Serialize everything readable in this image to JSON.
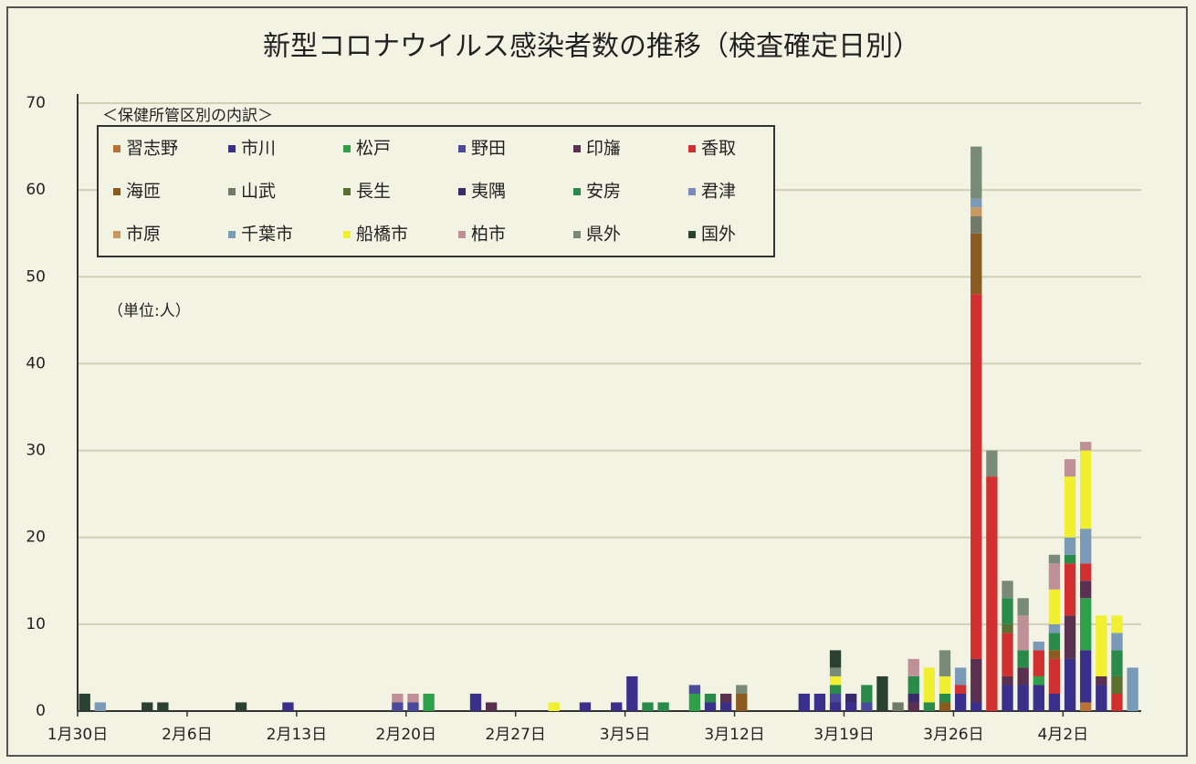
{
  "chart_data": {
    "type": "stacked_bar",
    "title": "新型コロナウイルス感染者数の推移（検査確定日別）",
    "legend_title": "＜保健所管区別の内訳＞",
    "annotation": "（単位:人）",
    "categories": [
      "1月30日",
      null,
      null,
      null,
      null,
      null,
      null,
      "2月6日",
      null,
      null,
      null,
      null,
      null,
      null,
      "2月13日",
      null,
      null,
      null,
      null,
      null,
      null,
      "2月20日",
      null,
      null,
      null,
      null,
      null,
      null,
      "2月27日",
      null,
      null,
      null,
      null,
      null,
      null,
      "3月5日",
      null,
      null,
      null,
      null,
      null,
      null,
      "3月12日",
      null,
      null,
      null,
      null,
      null,
      null,
      "3月19日",
      null,
      null,
      null,
      null,
      null,
      null,
      "3月26日",
      null,
      null,
      null,
      null,
      null,
      null,
      "4月2日",
      null,
      null,
      null,
      null
    ],
    "ylim": [
      0,
      70
    ],
    "yticks": [
      0,
      10,
      20,
      30,
      40,
      50,
      60,
      70
    ],
    "grid": true,
    "series": [
      {
        "name": "習志野",
        "color": "#b8733a",
        "values": [
          0,
          0,
          0,
          0,
          0,
          0,
          0,
          0,
          0,
          0,
          0,
          0,
          0,
          0,
          0,
          0,
          0,
          0,
          0,
          0,
          0,
          0,
          0,
          0,
          0,
          0,
          0,
          0,
          0,
          0,
          0,
          0,
          0,
          0,
          0,
          0,
          0,
          0,
          0,
          0,
          0,
          0,
          0,
          0,
          0,
          0,
          0,
          0,
          0,
          0,
          0,
          0,
          0,
          0,
          0,
          0,
          0,
          0,
          0,
          0,
          0,
          0,
          0,
          0,
          1,
          0,
          0,
          0
        ]
      },
      {
        "name": "市川",
        "color": "#3a2f8a",
        "values": [
          0,
          0,
          0,
          0,
          0,
          0,
          0,
          0,
          0,
          0,
          0,
          0,
          0,
          1,
          0,
          0,
          0,
          0,
          0,
          0,
          0,
          0,
          0,
          0,
          0,
          2,
          0,
          0,
          0,
          0,
          0,
          0,
          1,
          0,
          1,
          4,
          0,
          0,
          0,
          0,
          1,
          1,
          0,
          0,
          0,
          0,
          2,
          2,
          1,
          1,
          0,
          0,
          0,
          0,
          0,
          0,
          2,
          1,
          0,
          3,
          3,
          3,
          2,
          6,
          6,
          3,
          0,
          0
        ]
      },
      {
        "name": "松戸",
        "color": "#2ea04a",
        "values": [
          0,
          0,
          0,
          0,
          0,
          0,
          0,
          0,
          0,
          0,
          0,
          0,
          0,
          0,
          0,
          0,
          0,
          0,
          0,
          0,
          0,
          0,
          2,
          0,
          0,
          0,
          0,
          0,
          0,
          0,
          0,
          0,
          0,
          0,
          0,
          0,
          0,
          0,
          0,
          2,
          0,
          0,
          0,
          0,
          0,
          0,
          0,
          0,
          0,
          0,
          0,
          0,
          0,
          0,
          0,
          0,
          0,
          0,
          0,
          0,
          0,
          1,
          0,
          0,
          6,
          0,
          0,
          0
        ]
      },
      {
        "name": "野田",
        "color": "#4a4a9a",
        "values": [
          0,
          0,
          0,
          0,
          0,
          0,
          0,
          0,
          0,
          0,
          0,
          0,
          0,
          0,
          0,
          0,
          0,
          0,
          0,
          0,
          1,
          1,
          0,
          0,
          0,
          0,
          0,
          0,
          0,
          0,
          0,
          0,
          0,
          0,
          0,
          0,
          0,
          0,
          0,
          1,
          0,
          0,
          0,
          0,
          0,
          0,
          0,
          0,
          1,
          0,
          1,
          0,
          0,
          0,
          0,
          0,
          0,
          0,
          0,
          0,
          0,
          0,
          0,
          0,
          0,
          0,
          0,
          0
        ]
      },
      {
        "name": "印旛",
        "color": "#5a3050",
        "values": [
          0,
          0,
          0,
          0,
          0,
          0,
          0,
          0,
          0,
          0,
          0,
          0,
          0,
          0,
          0,
          0,
          0,
          0,
          0,
          0,
          0,
          0,
          0,
          0,
          0,
          0,
          1,
          0,
          0,
          0,
          0,
          0,
          0,
          0,
          0,
          0,
          0,
          0,
          0,
          0,
          0,
          1,
          0,
          0,
          0,
          0,
          0,
          0,
          0,
          0,
          0,
          0,
          0,
          1,
          0,
          0,
          0,
          5,
          0,
          1,
          2,
          0,
          0,
          5,
          2,
          1,
          0,
          0
        ]
      },
      {
        "name": "香取",
        "color": "#d03030",
        "values": [
          0,
          0,
          0,
          0,
          0,
          0,
          0,
          0,
          0,
          0,
          0,
          0,
          0,
          0,
          0,
          0,
          0,
          0,
          0,
          0,
          0,
          0,
          0,
          0,
          0,
          0,
          0,
          0,
          0,
          0,
          0,
          0,
          0,
          0,
          0,
          0,
          0,
          0,
          0,
          0,
          0,
          0,
          0,
          0,
          0,
          0,
          0,
          0,
          0,
          0,
          0,
          0,
          0,
          0,
          0,
          0,
          1,
          42,
          27,
          5,
          0,
          3,
          4,
          6,
          2,
          0,
          2,
          0
        ]
      },
      {
        "name": "海匝",
        "color": "#8a5a20",
        "values": [
          0,
          0,
          0,
          0,
          0,
          0,
          0,
          0,
          0,
          0,
          0,
          0,
          0,
          0,
          0,
          0,
          0,
          0,
          0,
          0,
          0,
          0,
          0,
          0,
          0,
          0,
          0,
          0,
          0,
          0,
          0,
          0,
          0,
          0,
          0,
          0,
          0,
          0,
          0,
          0,
          0,
          0,
          2,
          0,
          0,
          0,
          0,
          0,
          0,
          0,
          0,
          0,
          0,
          0,
          0,
          1,
          0,
          7,
          0,
          0,
          0,
          0,
          1,
          0,
          0,
          0,
          0,
          0
        ]
      },
      {
        "name": "山武",
        "color": "#707a68",
        "values": [
          0,
          0,
          0,
          0,
          0,
          0,
          0,
          0,
          0,
          0,
          0,
          0,
          0,
          0,
          0,
          0,
          0,
          0,
          0,
          0,
          0,
          0,
          0,
          0,
          0,
          0,
          0,
          0,
          0,
          0,
          0,
          0,
          0,
          0,
          0,
          0,
          0,
          0,
          0,
          0,
          0,
          0,
          0,
          0,
          0,
          0,
          0,
          0,
          0,
          0,
          0,
          0,
          1,
          0,
          0,
          0,
          0,
          2,
          0,
          0,
          0,
          0,
          0,
          0,
          0,
          0,
          0,
          0
        ]
      },
      {
        "name": "長生",
        "color": "#5a7030",
        "values": [
          0,
          0,
          0,
          0,
          0,
          0,
          0,
          0,
          0,
          0,
          0,
          0,
          0,
          0,
          0,
          0,
          0,
          0,
          0,
          0,
          0,
          0,
          0,
          0,
          0,
          0,
          0,
          0,
          0,
          0,
          0,
          0,
          0,
          0,
          0,
          0,
          0,
          0,
          0,
          0,
          0,
          0,
          0,
          0,
          0,
          0,
          0,
          0,
          0,
          0,
          0,
          0,
          0,
          0,
          0,
          0,
          0,
          0,
          0,
          1,
          0,
          0,
          0,
          0,
          0,
          0,
          2,
          0
        ]
      },
      {
        "name": "夷隅",
        "color": "#3a2a6a",
        "values": [
          0,
          0,
          0,
          0,
          0,
          0,
          0,
          0,
          0,
          0,
          0,
          0,
          0,
          0,
          0,
          0,
          0,
          0,
          0,
          0,
          0,
          0,
          0,
          0,
          0,
          0,
          0,
          0,
          0,
          0,
          0,
          0,
          0,
          0,
          0,
          0,
          0,
          0,
          0,
          0,
          0,
          0,
          0,
          0,
          0,
          0,
          0,
          0,
          0,
          1,
          0,
          0,
          0,
          1,
          0,
          0,
          0,
          0,
          0,
          0,
          0,
          0,
          0,
          0,
          0,
          0,
          0,
          0
        ]
      },
      {
        "name": "安房",
        "color": "#2a8a4a",
        "values": [
          0,
          0,
          0,
          0,
          0,
          0,
          0,
          0,
          0,
          0,
          0,
          0,
          0,
          0,
          0,
          0,
          0,
          0,
          0,
          0,
          0,
          0,
          0,
          0,
          0,
          0,
          0,
          0,
          0,
          0,
          0,
          0,
          0,
          0,
          0,
          0,
          1,
          1,
          0,
          0,
          1,
          0,
          0,
          0,
          0,
          0,
          0,
          0,
          1,
          0,
          2,
          0,
          0,
          2,
          1,
          1,
          0,
          0,
          0,
          3,
          2,
          0,
          2,
          1,
          0,
          0,
          3,
          0
        ]
      },
      {
        "name": "君津",
        "color": "#7a8ab8",
        "values": [
          0,
          0,
          0,
          0,
          0,
          0,
          0,
          0,
          0,
          0,
          0,
          0,
          0,
          0,
          0,
          0,
          0,
          0,
          0,
          0,
          0,
          0,
          0,
          0,
          0,
          0,
          0,
          0,
          0,
          0,
          0,
          0,
          0,
          0,
          0,
          0,
          0,
          0,
          0,
          0,
          0,
          0,
          0,
          0,
          0,
          0,
          0,
          0,
          0,
          0,
          0,
          0,
          0,
          0,
          0,
          0,
          0,
          0,
          0,
          0,
          0,
          0,
          0,
          0,
          0,
          0,
          0,
          0
        ]
      },
      {
        "name": "市原",
        "color": "#c89860",
        "values": [
          0,
          0,
          0,
          0,
          0,
          0,
          0,
          0,
          0,
          0,
          0,
          0,
          0,
          0,
          0,
          0,
          0,
          0,
          0,
          0,
          0,
          0,
          0,
          0,
          0,
          0,
          0,
          0,
          0,
          0,
          0,
          0,
          0,
          0,
          0,
          0,
          0,
          0,
          0,
          0,
          0,
          0,
          0,
          0,
          0,
          0,
          0,
          0,
          0,
          0,
          0,
          0,
          0,
          0,
          0,
          0,
          0,
          1,
          0,
          0,
          0,
          0,
          0,
          0,
          0,
          0,
          0,
          0
        ]
      },
      {
        "name": "千葉市",
        "color": "#7a9ab8",
        "values": [
          0,
          1,
          0,
          0,
          0,
          0,
          0,
          0,
          0,
          0,
          0,
          0,
          0,
          0,
          0,
          0,
          0,
          0,
          0,
          0,
          0,
          0,
          0,
          0,
          0,
          0,
          0,
          0,
          0,
          0,
          0,
          0,
          0,
          0,
          0,
          0,
          0,
          0,
          0,
          0,
          0,
          0,
          0,
          0,
          0,
          0,
          0,
          0,
          0,
          0,
          0,
          0,
          0,
          0,
          0,
          0,
          2,
          1,
          0,
          0,
          0,
          1,
          1,
          2,
          4,
          0,
          2,
          5
        ]
      },
      {
        "name": "船橋市",
        "color": "#f0f030",
        "values": [
          0,
          0,
          0,
          0,
          0,
          0,
          0,
          0,
          0,
          0,
          0,
          0,
          0,
          0,
          0,
          0,
          0,
          0,
          0,
          0,
          0,
          0,
          0,
          0,
          0,
          0,
          0,
          0,
          0,
          0,
          1,
          0,
          0,
          0,
          0,
          0,
          0,
          0,
          0,
          0,
          0,
          0,
          0,
          0,
          0,
          0,
          0,
          0,
          1,
          0,
          0,
          0,
          0,
          0,
          4,
          2,
          0,
          0,
          0,
          0,
          0,
          0,
          4,
          7,
          9,
          7,
          2,
          0
        ]
      },
      {
        "name": "柏市",
        "color": "#c09098",
        "values": [
          0,
          0,
          0,
          0,
          0,
          0,
          0,
          0,
          0,
          0,
          0,
          0,
          0,
          0,
          0,
          0,
          0,
          0,
          0,
          0,
          1,
          1,
          0,
          0,
          0,
          0,
          0,
          0,
          0,
          0,
          0,
          0,
          0,
          0,
          0,
          0,
          0,
          0,
          0,
          0,
          0,
          0,
          0,
          0,
          0,
          0,
          0,
          0,
          0,
          0,
          0,
          0,
          0,
          2,
          0,
          0,
          0,
          0,
          0,
          0,
          4,
          0,
          3,
          2,
          1,
          0,
          0,
          0
        ]
      },
      {
        "name": "県外",
        "color": "#7a8a78",
        "values": [
          0,
          0,
          0,
          0,
          0,
          0,
          0,
          0,
          0,
          0,
          0,
          0,
          0,
          0,
          0,
          0,
          0,
          0,
          0,
          0,
          0,
          0,
          0,
          0,
          0,
          0,
          0,
          0,
          0,
          0,
          0,
          0,
          0,
          0,
          0,
          0,
          0,
          0,
          0,
          0,
          0,
          0,
          1,
          0,
          0,
          0,
          0,
          0,
          1,
          0,
          0,
          0,
          0,
          0,
          0,
          3,
          0,
          6,
          3,
          2,
          2,
          0,
          1,
          0,
          0,
          0,
          0,
          0
        ]
      },
      {
        "name": "国外",
        "color": "#2a4030",
        "values": [
          2,
          0,
          0,
          0,
          1,
          1,
          0,
          0,
          0,
          0,
          1,
          0,
          0,
          0,
          0,
          0,
          0,
          0,
          0,
          0,
          0,
          0,
          0,
          0,
          0,
          0,
          0,
          0,
          0,
          0,
          0,
          0,
          0,
          0,
          0,
          0,
          0,
          0,
          0,
          0,
          0,
          0,
          0,
          0,
          0,
          0,
          0,
          0,
          2,
          0,
          0,
          4,
          0,
          0,
          0,
          0,
          0,
          0,
          0,
          0,
          0,
          0,
          0,
          0,
          0,
          0,
          0,
          0
        ]
      }
    ]
  }
}
